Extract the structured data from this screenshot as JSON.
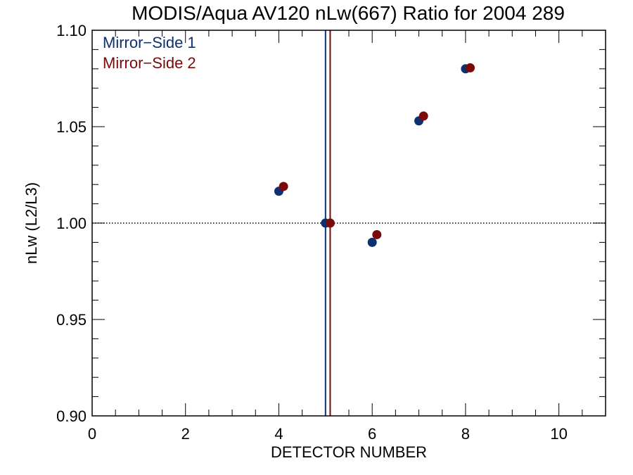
{
  "chart_data": {
    "type": "scatter",
    "title": "MODIS/Aqua AV120 nLw(667) Ratio for 2004 289",
    "xlabel": "DETECTOR NUMBER",
    "ylabel": "nLw (L2/L3)",
    "xlim": [
      0,
      11
    ],
    "ylim": [
      0.9,
      1.1
    ],
    "x_ticks": [
      0,
      2,
      4,
      6,
      8,
      10
    ],
    "x_tick_labels": [
      "0",
      "2",
      "4",
      "6",
      "8",
      "10"
    ],
    "y_ticks": [
      0.9,
      0.95,
      1.0,
      1.05,
      1.1
    ],
    "y_tick_labels": [
      "0.90",
      "0.95",
      "1.00",
      "1.05",
      "1.10"
    ],
    "reference_line_y": 1.0,
    "legend_position": "top-left",
    "series": [
      {
        "name": "Mirror−Side 1",
        "color": "#0d3070",
        "vline_x": 5.0,
        "x": [
          4.0,
          5.0,
          6.0,
          7.0,
          8.0
        ],
        "y": [
          1.0165,
          1.0,
          0.99,
          1.053,
          1.08
        ]
      },
      {
        "name": "Mirror−Side 2",
        "color": "#7a0a0a",
        "vline_x": 5.1,
        "x": [
          4.1,
          5.1,
          6.1,
          7.1,
          8.1
        ],
        "y": [
          1.019,
          1.0,
          0.994,
          1.0555,
          1.0805
        ]
      }
    ]
  }
}
